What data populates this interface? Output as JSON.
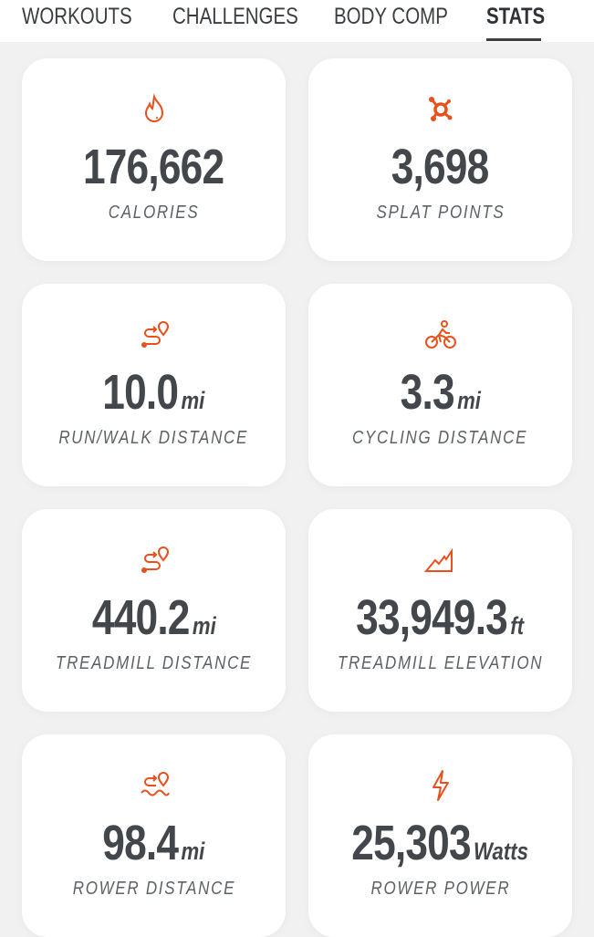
{
  "tabs": [
    {
      "label": "WORKOUTS",
      "active": false
    },
    {
      "label": "CHALLENGES",
      "active": false
    },
    {
      "label": "BODY COMP",
      "active": false
    },
    {
      "label": "STATS",
      "active": true
    }
  ],
  "accent_color": "#e8501c",
  "stats": [
    {
      "icon": "flame-icon",
      "value": "176,662",
      "unit": "",
      "label": "CALORIES"
    },
    {
      "icon": "splat-icon",
      "value": "3,698",
      "unit": "",
      "label": "SPLAT POINTS"
    },
    {
      "icon": "route-icon",
      "value": "10.0",
      "unit": "mi",
      "label": "RUN/WALK DISTANCE"
    },
    {
      "icon": "cyclist-icon",
      "value": "3.3",
      "unit": "mi",
      "label": "CYCLING DISTANCE"
    },
    {
      "icon": "route-icon",
      "value": "440.2",
      "unit": "mi",
      "label": "TREADMILL DISTANCE"
    },
    {
      "icon": "mountain-icon",
      "value": "33,949.3",
      "unit": "ft",
      "label": "TREADMILL ELEVATION"
    },
    {
      "icon": "water-route-icon",
      "value": "98.4",
      "unit": "mi",
      "label": "ROWER DISTANCE"
    },
    {
      "icon": "lightning-icon",
      "value": "25,303",
      "unit": "Watts",
      "label": "ROWER POWER"
    }
  ]
}
